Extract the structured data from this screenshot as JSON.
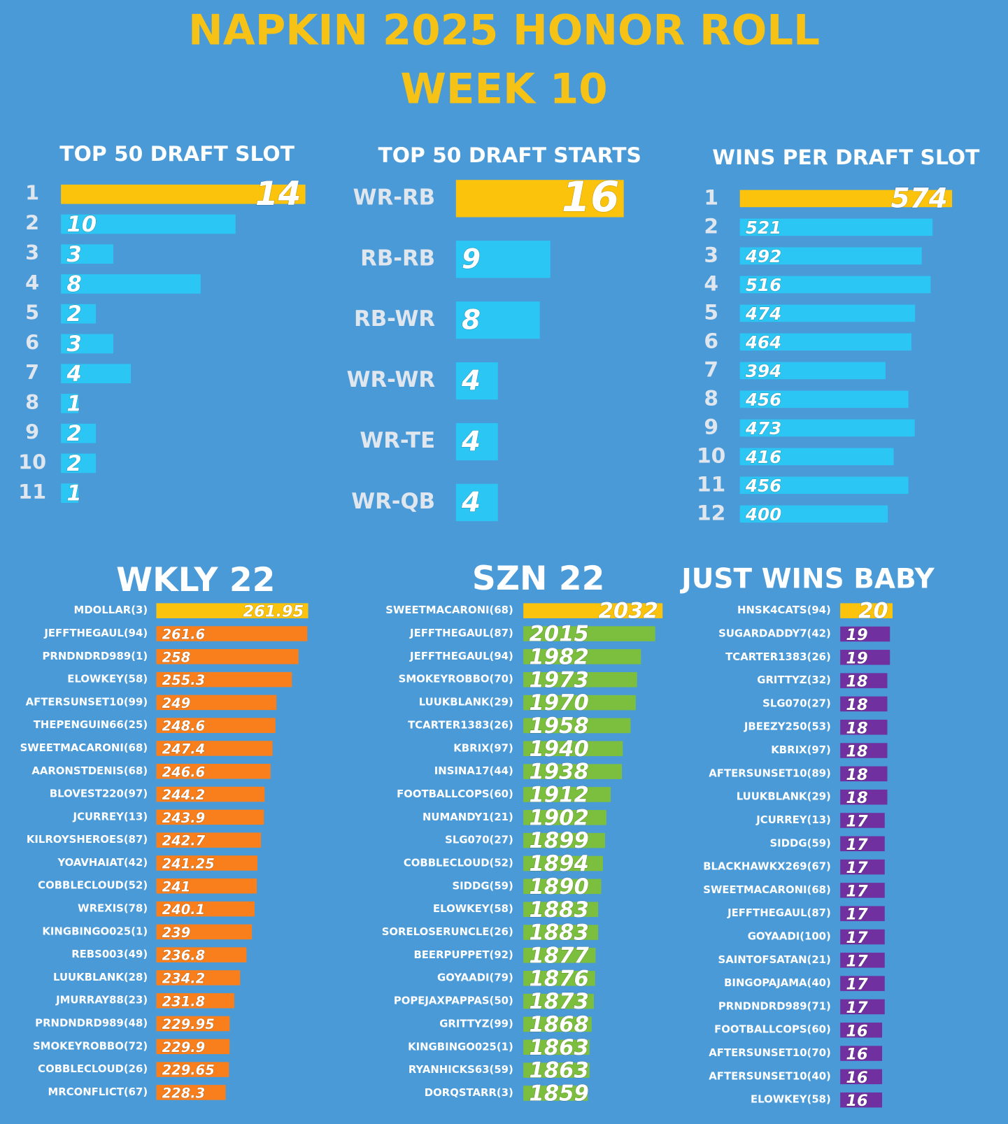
{
  "header": {
    "title": "NAPKIN 2025 HONOR ROLL",
    "subtitle": "WEEK 10"
  },
  "chart_data": [
    {
      "type": "bar",
      "title": "TOP 50 DRAFT SLOT",
      "categories": [
        "1",
        "2",
        "3",
        "4",
        "5",
        "6",
        "7",
        "8",
        "9",
        "10",
        "11"
      ],
      "values": [
        14,
        10,
        3,
        8,
        2,
        3,
        4,
        1,
        2,
        2,
        1
      ],
      "colors": [
        "#fbc30b",
        "#2bc6f4",
        "#2bc6f4",
        "#2bc6f4",
        "#2bc6f4",
        "#2bc6f4",
        "#2bc6f4",
        "#2bc6f4",
        "#2bc6f4",
        "#2bc6f4",
        "#2bc6f4"
      ],
      "xlim": [
        0,
        14
      ]
    },
    {
      "type": "bar",
      "title": "TOP 50 DRAFT STARTS",
      "categories": [
        "WR-RB",
        "RB-RB",
        "RB-WR",
        "WR-WR",
        "WR-TE",
        "WR-QB"
      ],
      "values": [
        16,
        9,
        8,
        4,
        4,
        4
      ],
      "colors": [
        "#fbc30b",
        "#2bc6f4",
        "#2bc6f4",
        "#2bc6f4",
        "#2bc6f4",
        "#2bc6f4"
      ],
      "xlim": [
        0,
        16
      ]
    },
    {
      "type": "bar",
      "title": "WINS PER DRAFT SLOT",
      "categories": [
        "1",
        "2",
        "3",
        "4",
        "5",
        "6",
        "7",
        "8",
        "9",
        "10",
        "11",
        "12"
      ],
      "values": [
        574,
        521,
        492,
        516,
        474,
        464,
        394,
        456,
        473,
        416,
        456,
        400
      ],
      "colors": [
        "#fbc30b",
        "#2bc6f4",
        "#2bc6f4",
        "#2bc6f4",
        "#2bc6f4",
        "#2bc6f4",
        "#2bc6f4",
        "#2bc6f4",
        "#2bc6f4",
        "#2bc6f4",
        "#2bc6f4",
        "#2bc6f4"
      ],
      "xlim": [
        0,
        574
      ]
    },
    {
      "type": "bar",
      "title": "WKLY 22",
      "categories": [
        "MDOLLAR(3)",
        "JEFFTHEGAUL(94)",
        "PRNDNDRD989(1)",
        "ELOWKEY(58)",
        "AFTERSUNSET10(99)",
        "THEPENGUIN66(25)",
        "SWEETMACARONI(68)",
        "AARONSTDENIS(68)",
        "BLOVEST220(97)",
        "JCURREY(13)",
        "KILROYSHEROES(87)",
        "YOAVHAIAT(42)",
        "COBBLECLOUD(52)",
        "WREXIS(78)",
        "KINGBINGO025(1)",
        "REBS003(49)",
        "LUUKBLANK(28)",
        "JMURRAY88(23)",
        "PRNDNDRD989(48)",
        "SMOKEYROBBO(72)",
        "COBBLECLOUD(26)",
        "MRCONFLICT(67)"
      ],
      "values": [
        261.95,
        261.6,
        258,
        255.3,
        249,
        248.6,
        247.4,
        246.6,
        244.2,
        243.9,
        242.7,
        241.25,
        241,
        240.1,
        239,
        236.8,
        234.2,
        231.8,
        229.95,
        229.9,
        229.65,
        228.3
      ],
      "colors": [
        "#fbc30b",
        "#f97f1c",
        "#f97f1c",
        "#f97f1c",
        "#f97f1c",
        "#f97f1c",
        "#f97f1c",
        "#f97f1c",
        "#f97f1c",
        "#f97f1c",
        "#f97f1c",
        "#f97f1c",
        "#f97f1c",
        "#f97f1c",
        "#f97f1c",
        "#f97f1c",
        "#f97f1c",
        "#f97f1c",
        "#f97f1c",
        "#f97f1c",
        "#f97f1c",
        "#f97f1c"
      ],
      "xlim": [
        200,
        262
      ]
    },
    {
      "type": "bar",
      "title": "SZN 22",
      "categories": [
        "SWEETMACARONI(68)",
        "JEFFTHEGAUL(87)",
        "JEFFTHEGAUL(94)",
        "SMOKEYROBBO(70)",
        "LUUKBLANK(29)",
        "TCARTER1383(26)",
        "KBRIX(97)",
        "INSINA17(44)",
        "FOOTBALLCOPS(60)",
        "NUMANDY1(21)",
        "SLG070(27)",
        "COBBLECLOUD(52)",
        "SIDDG(59)",
        "ELOWKEY(58)",
        "SORELOSERUNCLE(26)",
        "BEERPUPPET(92)",
        "GOYAADI(79)",
        "POPEJAXPAPPAS(50)",
        "GRITTYZ(99)",
        "KINGBINGO025(1)",
        "RYANHICKS63(59)",
        "DORQSTARR(3)"
      ],
      "values": [
        2032,
        2015,
        1982,
        1973,
        1970,
        1958,
        1940,
        1938,
        1912,
        1902,
        1899,
        1894,
        1890,
        1883,
        1883,
        1877,
        1876,
        1873,
        1868,
        1863,
        1863,
        1859
      ],
      "colors": [
        "#fbc30b",
        "#7cbf3e",
        "#7cbf3e",
        "#7cbf3e",
        "#7cbf3e",
        "#7cbf3e",
        "#7cbf3e",
        "#7cbf3e",
        "#7cbf3e",
        "#7cbf3e",
        "#7cbf3e",
        "#7cbf3e",
        "#7cbf3e",
        "#7cbf3e",
        "#7cbf3e",
        "#7cbf3e",
        "#7cbf3e",
        "#7cbf3e",
        "#7cbf3e",
        "#7cbf3e",
        "#7cbf3e",
        "#7cbf3e"
      ],
      "xlim": [
        1710,
        2035
      ]
    },
    {
      "type": "bar",
      "title": "JUST WINS BABY",
      "categories": [
        "HNSK4CATS(94)",
        "SUGARDADDY7(42)",
        "TCARTER1383(26)",
        "GRITTYZ(32)",
        "SLG070(27)",
        "JBEEZY250(53)",
        "KBRIX(97)",
        "AFTERSUNSET10(89)",
        "LUUKBLANK(29)",
        "JCURREY(13)",
        "SIDDG(59)",
        "BLACKHAWKX269(67)",
        "SWEETMACARONI(68)",
        "JEFFTHEGAUL(87)",
        "GOYAADI(100)",
        "SAINTOFSATAN(21)",
        "BINGOPAJAMA(40)",
        "PRNDNDRD989(71)",
        "FOOTBALLCOPS(60)",
        "AFTERSUNSET10(70)",
        "AFTERSUNSET10(40)",
        "ELOWKEY(58)"
      ],
      "values": [
        20,
        19,
        19,
        18,
        18,
        18,
        18,
        18,
        18,
        17,
        17,
        17,
        17,
        17,
        17,
        17,
        17,
        17,
        16,
        16,
        16,
        16
      ],
      "colors": [
        "#fbc30b",
        "#7030a0",
        "#7030a0",
        "#7030a0",
        "#7030a0",
        "#7030a0",
        "#7030a0",
        "#7030a0",
        "#7030a0",
        "#7030a0",
        "#7030a0",
        "#7030a0",
        "#7030a0",
        "#7030a0",
        "#7030a0",
        "#7030a0",
        "#7030a0",
        "#7030a0",
        "#7030a0",
        "#7030a0",
        "#7030a0",
        "#7030a0"
      ],
      "xlim": [
        0,
        20
      ]
    }
  ]
}
